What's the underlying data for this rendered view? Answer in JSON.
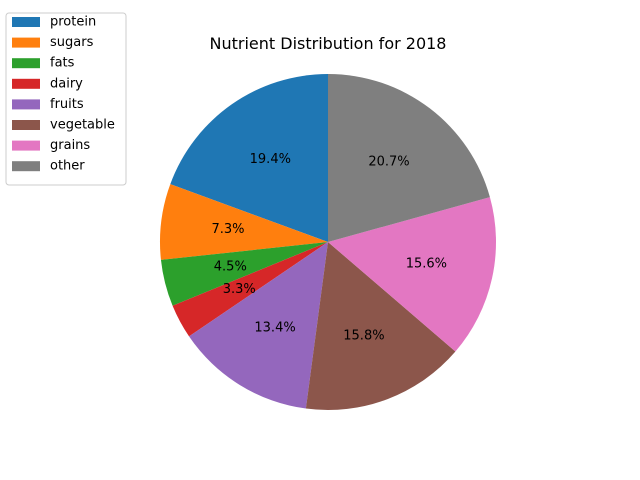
{
  "chart_data": {
    "type": "pie",
    "title": "Nutrient Distribution for 2018",
    "labels": [
      "protein",
      "sugars",
      "fats",
      "dairy",
      "fruits",
      "vegetable",
      "grains",
      "other"
    ],
    "values": [
      19.4,
      7.3,
      4.5,
      3.3,
      13.4,
      15.8,
      15.6,
      20.7
    ],
    "value_labels": [
      "19.4%",
      "7.3%",
      "4.5%",
      "3.3%",
      "13.4%",
      "15.8%",
      "15.6%",
      "20.7%"
    ],
    "colors": [
      "#1f77b4",
      "#ff7f0e",
      "#2ca02c",
      "#d62728",
      "#9467bd",
      "#8c564b",
      "#e377c2",
      "#7f7f7f"
    ],
    "start_angle": 90,
    "direction": "counterclockwise",
    "legend_placement": "top-left"
  }
}
